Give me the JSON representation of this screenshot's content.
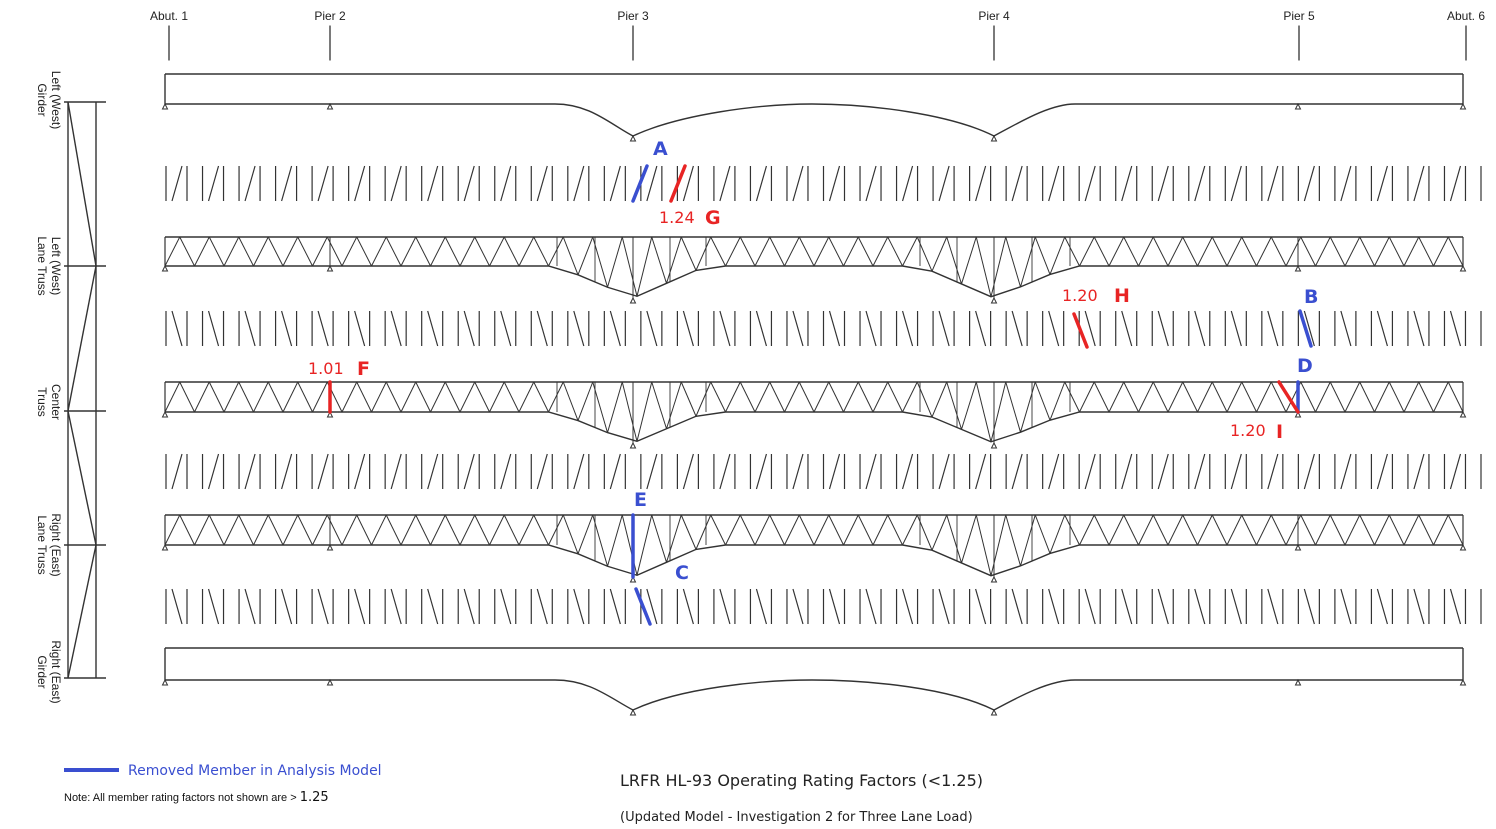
{
  "supports": [
    "Abut. 1",
    "Pier 2",
    "Pier 3",
    "Pier 4",
    "Pier 5",
    "Abut. 6"
  ],
  "rows": [
    {
      "label_line1": "Left (West)",
      "label_line2": "Girder"
    },
    {
      "label_line1": "Left (West)",
      "label_line2": "Lane Truss"
    },
    {
      "label_line1": "Center",
      "label_line2": "Truss"
    },
    {
      "label_line1": "Right (East)",
      "label_line2": "Lane Truss"
    },
    {
      "label_line1": "Right (East)",
      "label_line2": "Girder"
    }
  ],
  "removed_members": [
    {
      "letter": "A",
      "location": "Left girder / left lane truss lateral bracing at Pier 3"
    },
    {
      "letter": "B",
      "location": "Left lane truss / center truss lateral bracing near Pier 5"
    },
    {
      "letter": "C",
      "location": "Right lane truss / right girder lateral bracing at Pier 3"
    },
    {
      "letter": "D",
      "location": "Center truss vertical at Pier 5"
    },
    {
      "letter": "E",
      "location": "Right lane truss vertical at Pier 3"
    }
  ],
  "rating_factors": [
    {
      "letter": "F",
      "value": "1.01",
      "location": "Center truss vertical at Pier 2"
    },
    {
      "letter": "G",
      "value": "1.24",
      "location": "Lateral bracing just east of Pier 3"
    },
    {
      "letter": "H",
      "value": "1.20",
      "location": "Lateral bracing between Pier 4 and Pier 5"
    },
    {
      "letter": "I",
      "value": "1.20",
      "location": "Center truss diagonal at Pier 5"
    }
  ],
  "legend": {
    "removed_label": "Removed Member in Analysis Model",
    "removed_color": "#3a4fd0",
    "note_text": "Note:  All member rating factors not shown are > ",
    "note_value": "1.25"
  },
  "title": "LRFR HL-93 Operating Rating Factors (<1.25)",
  "subtitle": "(Updated Model - Investigation 2 for Three Lane Load)",
  "colors": {
    "structure": "#333333",
    "removed": "#3a4fd0",
    "low_rating": "#e82424"
  }
}
